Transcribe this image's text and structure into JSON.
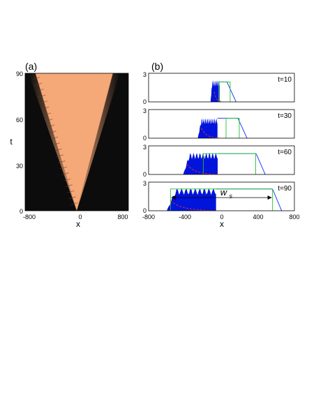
{
  "panel_a": {
    "label": "(a)",
    "xlabel": "x",
    "ylabel": "t",
    "x_ticks": [
      "-800",
      "0",
      "800"
    ],
    "y_ticks": [
      "90",
      "60",
      "30",
      "0"
    ]
  },
  "panel_b": {
    "label": "(b)",
    "xlabel": "x",
    "x_ticks": [
      "-800",
      "-400",
      "0",
      "400",
      "800"
    ],
    "y_ticks": [
      "3",
      "0"
    ],
    "time_labels": [
      "t=10",
      "t=30",
      "t=60",
      "t=90"
    ],
    "width_annotation": "w",
    "width_annotation_sub": "s"
  },
  "colors": {
    "density": "#f5a878",
    "background": "#0c0c0c",
    "fill_blue": "#0014dc",
    "step_green": "#22c22a",
    "dash_red": "#e0302a",
    "line_blue": "#2040ff"
  },
  "chart_data": [
    {
      "type": "heatmap",
      "title": "",
      "xlabel": "x",
      "ylabel": "t",
      "xlim": [
        -800,
        800
      ],
      "ylim": [
        0,
        90
      ],
      "description_of_field": "bright expanding wedge",
      "wedge_edges": {
        "t": [
          0,
          90
        ],
        "left_x": [
          0,
          -640
        ],
        "right_x": [
          0,
          560
        ]
      }
    },
    {
      "type": "line",
      "xlabel": "x",
      "xlim": [
        -800,
        800
      ],
      "ylim": [
        0,
        3
      ],
      "panels": [
        {
          "t": 10,
          "left_edge": -120,
          "right_edge": 100,
          "peak": 2.4,
          "plateau": 2.2,
          "step_left": -30,
          "step_right": 95,
          "step_height": 2.2
        },
        {
          "t": 30,
          "left_edge": -260,
          "right_edge": 220,
          "peak": 2.2,
          "plateau": 2.2,
          "step_left": 50,
          "step_right": 195,
          "step_height": 2.2
        },
        {
          "t": 60,
          "left_edge": -420,
          "right_edge": 420,
          "peak": 2.4,
          "plateau": 2.3,
          "step_left": -200,
          "step_right": 375,
          "step_height": 2.3
        },
        {
          "t": 90,
          "left_edge": -600,
          "right_edge": 600,
          "peak": 2.5,
          "plateau": 2.4,
          "step_left": -560,
          "step_right": 560,
          "step_height": 2.4
        }
      ]
    }
  ]
}
